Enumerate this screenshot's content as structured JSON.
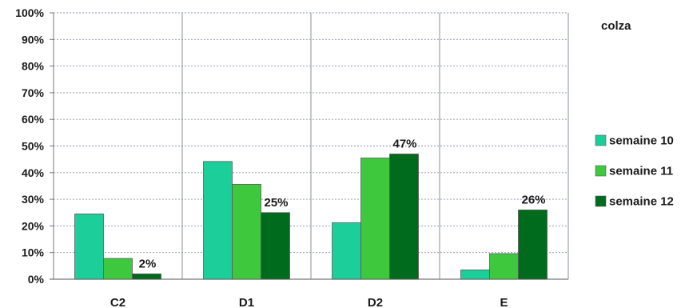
{
  "chart_data": {
    "type": "bar",
    "title": "colza",
    "categories": [
      "C2",
      "D1",
      "D2",
      "E"
    ],
    "series": [
      {
        "name": "semaine 10",
        "color": "#1ccf9a",
        "values": [
          24.5,
          44.2,
          21.2,
          3.5
        ]
      },
      {
        "name": "semaine 11",
        "color": "#3ec83e",
        "values": [
          7.8,
          35.6,
          45.5,
          9.6
        ]
      },
      {
        "name": "semaine 12",
        "color": "#006b1c",
        "values": [
          2,
          25,
          47,
          26
        ]
      }
    ],
    "data_labels": [
      "2%",
      "25%",
      "47%",
      "26%"
    ],
    "ylim": [
      0,
      100
    ],
    "y_ticks": [
      "0%",
      "10%",
      "20%",
      "30%",
      "40%",
      "50%",
      "60%",
      "70%",
      "80%",
      "90%",
      "100%"
    ],
    "grid": true,
    "legend_position": "right"
  }
}
